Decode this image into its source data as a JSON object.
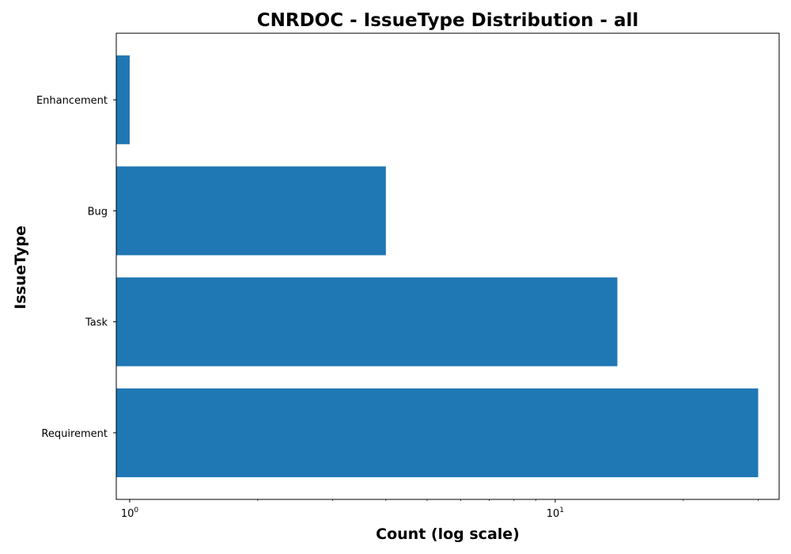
{
  "chart_data": {
    "type": "bar",
    "orientation": "horizontal",
    "title": "CNRDOC - IssueType Distribution - all",
    "xlabel": "Count (log scale)",
    "ylabel": "IssueType",
    "x_scale": "log",
    "xlim": [
      0.93,
      33.6
    ],
    "x_major_ticks": [
      {
        "value": 1,
        "base": "10",
        "exponent": "0"
      },
      {
        "value": 10,
        "base": "10",
        "exponent": "1"
      }
    ],
    "categories": [
      "Requirement",
      "Task",
      "Bug",
      "Enhancement"
    ],
    "values": [
      30,
      14,
      4,
      1
    ],
    "bar_color": "#1f77b4",
    "grid": false,
    "legend": "none"
  }
}
